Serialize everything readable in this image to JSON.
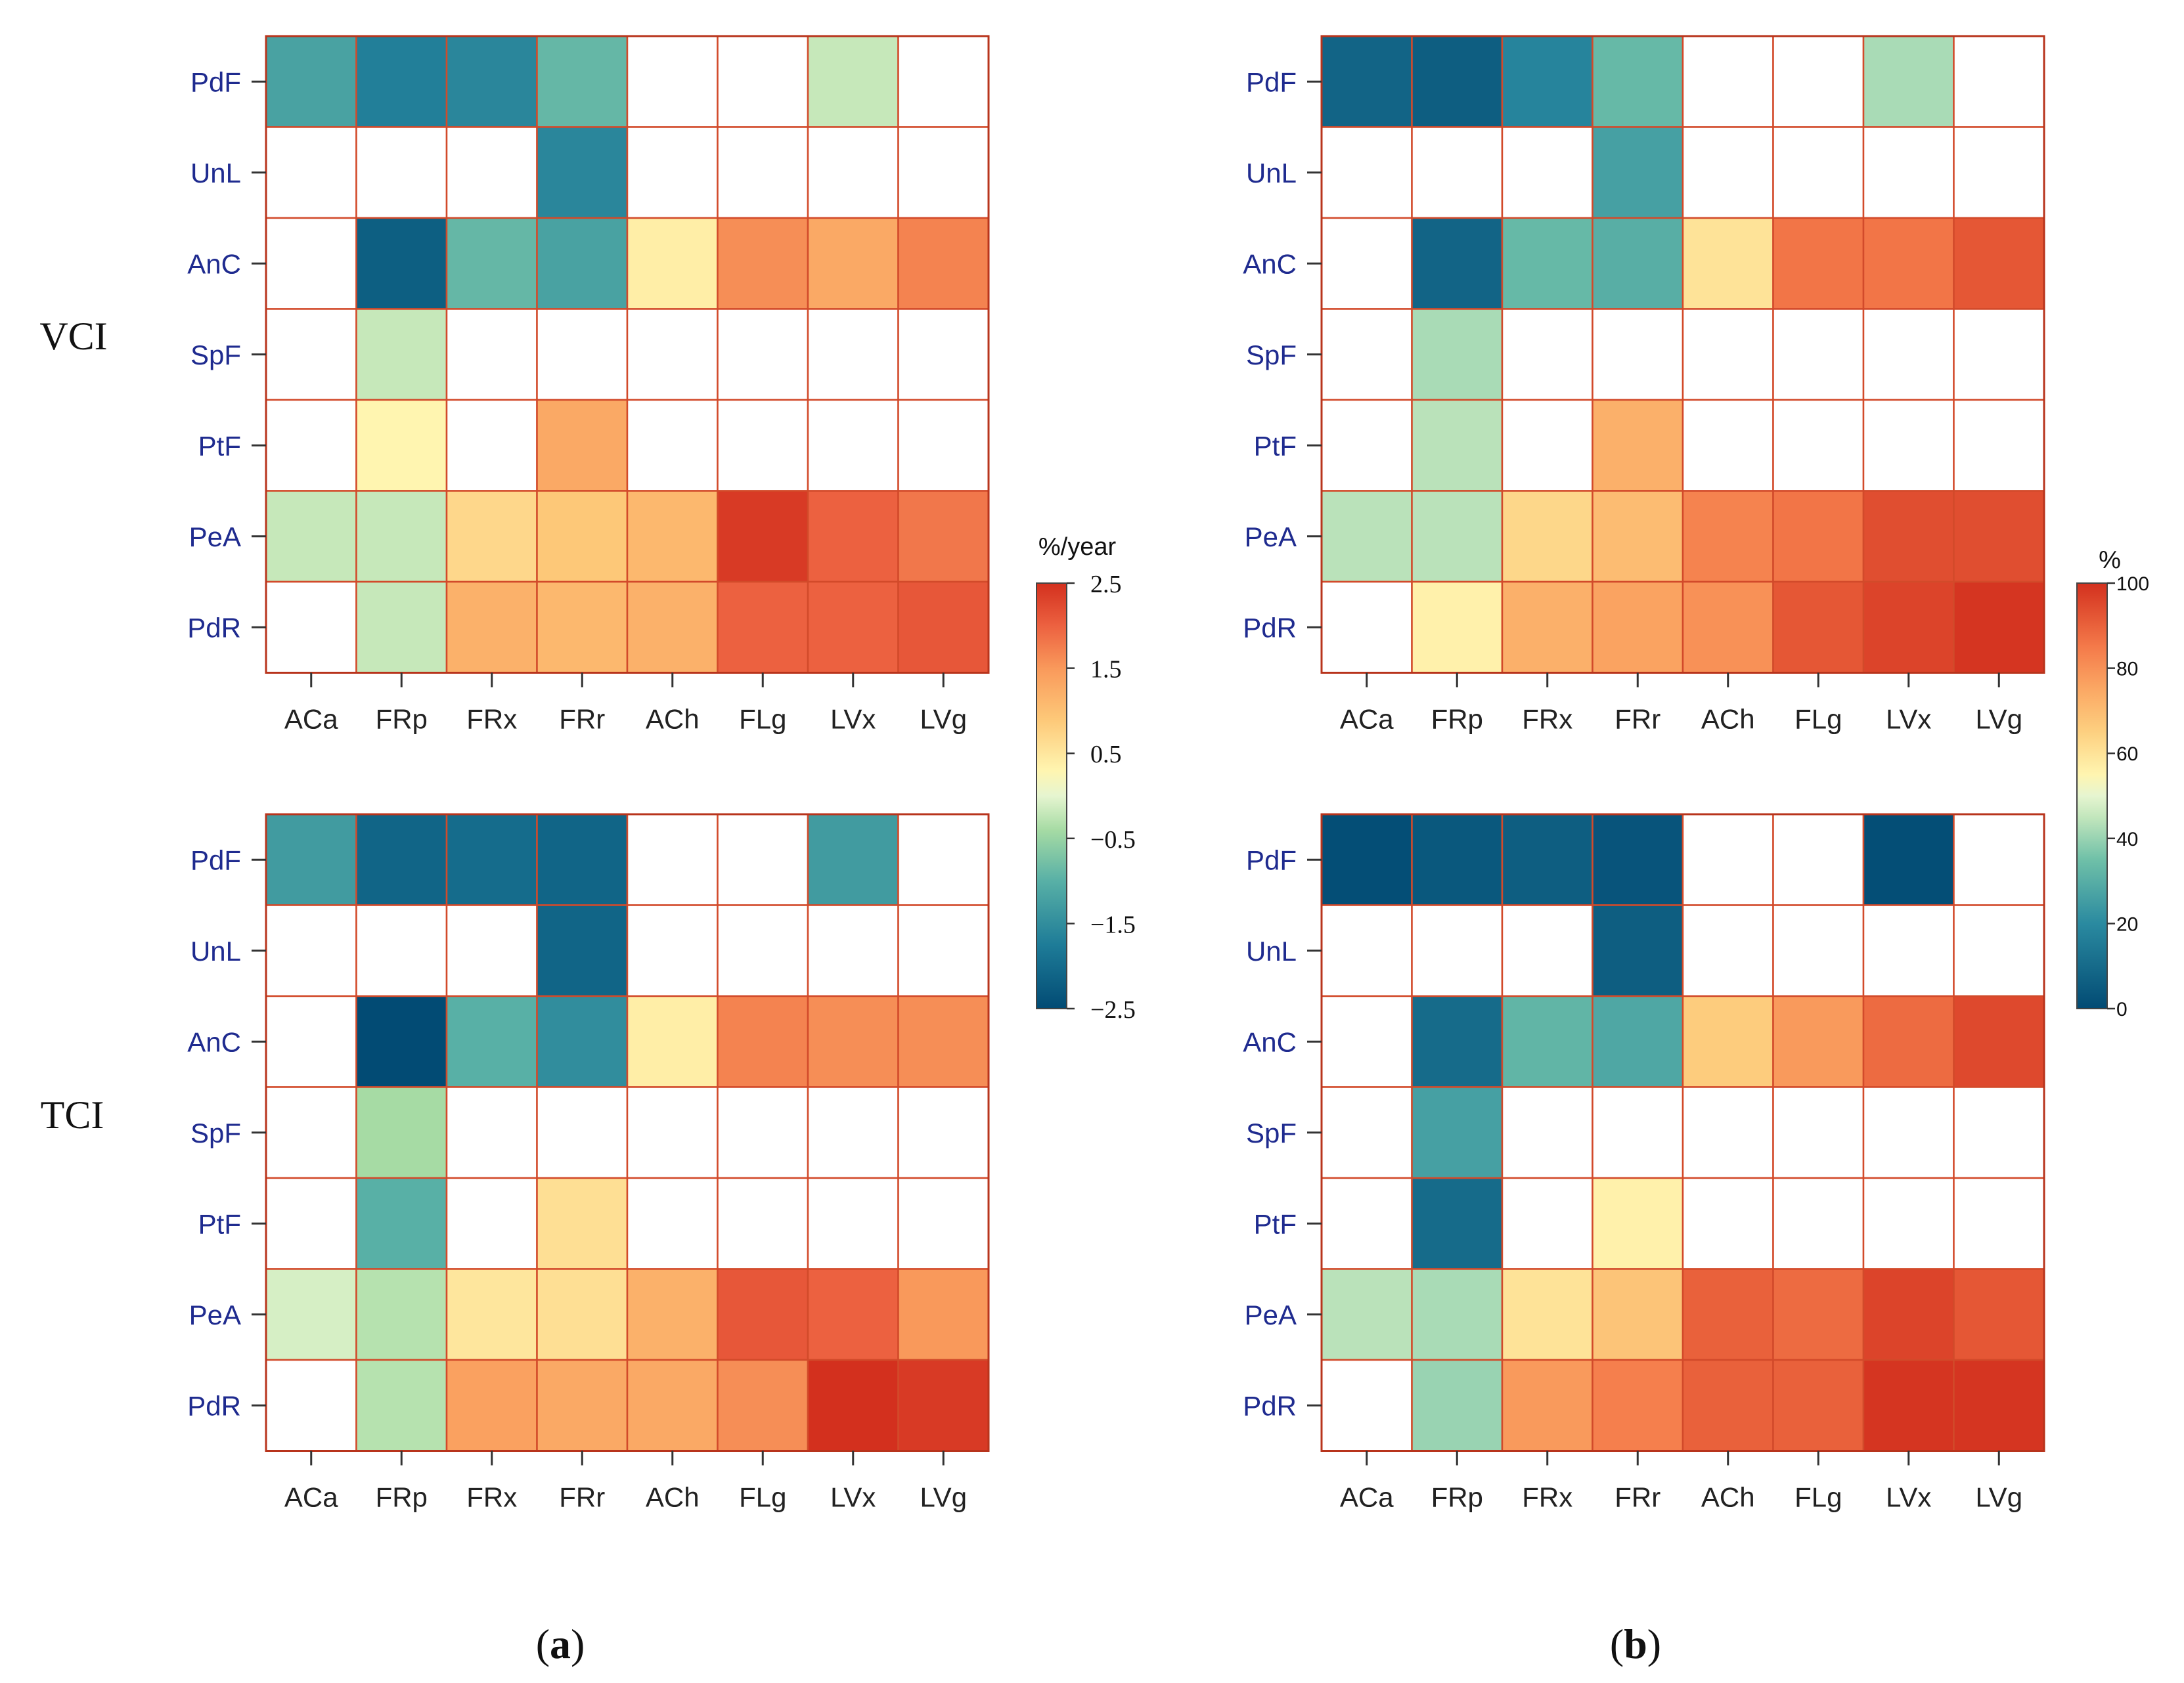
{
  "chart_data": {
    "type": "heatmap",
    "rows": [
      "PdF",
      "UnL",
      "AnC",
      "SpF",
      "PtF",
      "PeA",
      "PdR"
    ],
    "columns": [
      "ACa",
      "FRp",
      "FRx",
      "FRr",
      "ACh",
      "FLg",
      "LVx",
      "LVg"
    ],
    "row_titles": [
      "VCI",
      "TCI"
    ],
    "panels": [
      {
        "id": "a",
        "caption": "a",
        "colorbar": {
          "title": "%/year",
          "ticks": [
            {
              "value": 2.5,
              "label": "2.5"
            },
            {
              "value": 1.5,
              "label": "1.5"
            },
            {
              "value": 0.5,
              "label": "0.5"
            },
            {
              "value": -0.5,
              "label": "−0.5"
            },
            {
              "value": -1.5,
              "label": "−1.5"
            },
            {
              "value": -2.5,
              "label": "−2.5"
            }
          ],
          "range": [
            -2.5,
            2.5
          ],
          "stops": [
            {
              "pos": 0.0,
              "color": "#024b74"
            },
            {
              "pos": 0.15,
              "color": "#1e7c98"
            },
            {
              "pos": 0.3,
              "color": "#58b0a6"
            },
            {
              "pos": 0.42,
              "color": "#a6dba4"
            },
            {
              "pos": 0.5,
              "color": "#e6f5d0"
            },
            {
              "pos": 0.56,
              "color": "#fff5b0"
            },
            {
              "pos": 0.68,
              "color": "#fdc878"
            },
            {
              "pos": 0.8,
              "color": "#f9995b"
            },
            {
              "pos": 0.9,
              "color": "#ec6140"
            },
            {
              "pos": 1.0,
              "color": "#d3301e"
            }
          ]
        },
        "charts": [
          {
            "index": "VCI",
            "values": [
              [
                -1.2,
                -1.7,
                -1.6,
                -0.9,
                null,
                null,
                -0.2,
                null
              ],
              [
                null,
                null,
                null,
                -1.6,
                null,
                null,
                null,
                null
              ],
              [
                null,
                -2.2,
                -0.9,
                -1.2,
                0.4,
                1.6,
                1.3,
                1.7
              ],
              [
                null,
                -0.2,
                null,
                null,
                null,
                null,
                null,
                null
              ],
              [
                null,
                0.3,
                null,
                1.3,
                null,
                null,
                null,
                null
              ],
              [
                -0.2,
                -0.2,
                0.7,
                0.9,
                1.1,
                2.4,
                2.0,
                1.8
              ],
              [
                null,
                -0.2,
                1.2,
                1.1,
                1.2,
                2.0,
                2.0,
                2.1
              ]
            ]
          },
          {
            "index": "TCI",
            "values": [
              [
                -1.3,
                -2.1,
                -2.0,
                -2.1,
                null,
                null,
                -1.3,
                null
              ],
              [
                null,
                null,
                null,
                -2.1,
                null,
                null,
                null,
                null
              ],
              [
                null,
                -2.5,
                -1.0,
                -1.5,
                0.4,
                1.7,
                1.6,
                1.6
              ],
              [
                null,
                -0.4,
                null,
                null,
                null,
                null,
                null,
                null
              ],
              [
                null,
                -1.0,
                null,
                0.6,
                null,
                null,
                null,
                null
              ],
              [
                -0.1,
                -0.3,
                0.5,
                0.6,
                1.2,
                2.1,
                2.0,
                1.5
              ],
              [
                null,
                -0.3,
                1.4,
                1.3,
                1.3,
                1.6,
                2.5,
                2.4
              ]
            ]
          }
        ]
      },
      {
        "id": "b",
        "caption": "b",
        "colorbar": {
          "title": "%",
          "ticks": [
            {
              "value": 100,
              "label": "100"
            },
            {
              "value": 80,
              "label": "80"
            },
            {
              "value": 60,
              "label": "60"
            },
            {
              "value": 40,
              "label": "40"
            },
            {
              "value": 20,
              "label": "20"
            },
            {
              "value": 0,
              "label": "0"
            }
          ],
          "range": [
            0,
            100
          ],
          "stops": [
            {
              "pos": 0.0,
              "color": "#024b74"
            },
            {
              "pos": 0.2,
              "color": "#2a8aa0"
            },
            {
              "pos": 0.35,
              "color": "#6fc0a8"
            },
            {
              "pos": 0.45,
              "color": "#c2e6bc"
            },
            {
              "pos": 0.5,
              "color": "#e6f5d0"
            },
            {
              "pos": 0.55,
              "color": "#fff5b0"
            },
            {
              "pos": 0.65,
              "color": "#fdd080"
            },
            {
              "pos": 0.75,
              "color": "#fba864"
            },
            {
              "pos": 0.85,
              "color": "#f47a4a"
            },
            {
              "pos": 1.0,
              "color": "#d3301e"
            }
          ]
        },
        "charts": [
          {
            "index": "VCI",
            "values": [
              [
                8,
                6,
                18,
                33,
                null,
                null,
                42,
                null
              ],
              [
                null,
                null,
                null,
                26,
                null,
                null,
                null,
                null
              ],
              [
                null,
                8,
                33,
                30,
                60,
                86,
                86,
                92
              ],
              [
                null,
                42,
                null,
                null,
                null,
                null,
                null,
                null
              ],
              [
                null,
                44,
                null,
                73,
                null,
                null,
                null,
                null
              ],
              [
                44,
                44,
                63,
                70,
                83,
                86,
                94,
                94
              ],
              [
                null,
                56,
                73,
                76,
                80,
                92,
                96,
                99
              ]
            ]
          },
          {
            "index": "TCI",
            "values": [
              [
                1,
                4,
                6,
                3,
                null,
                null,
                1,
                null
              ],
              [
                null,
                null,
                null,
                6,
                null,
                null,
                null,
                null
              ],
              [
                null,
                10,
                32,
                28,
                66,
                78,
                88,
                95
              ],
              [
                null,
                26,
                null,
                null,
                null,
                null,
                null,
                null
              ],
              [
                null,
                10,
                null,
                56,
                null,
                null,
                null,
                null
              ],
              [
                44,
                42,
                60,
                68,
                90,
                88,
                96,
                92
              ],
              [
                null,
                40,
                78,
                84,
                90,
                90,
                99,
                99
              ]
            ]
          }
        ]
      }
    ]
  }
}
